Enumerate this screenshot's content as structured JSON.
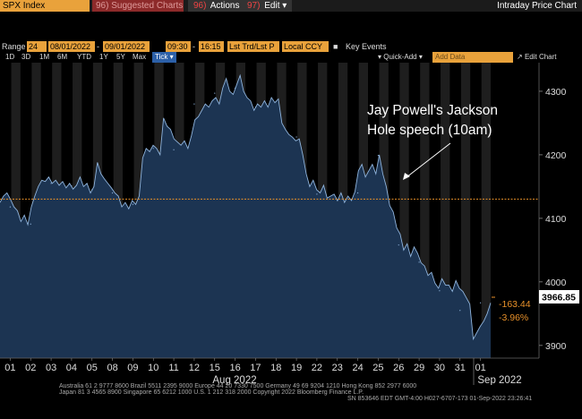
{
  "toolbar": {
    "ticker": "SPX Index",
    "suggested": "96) Suggested Charts",
    "actions_num": "96)",
    "actions": "Actions",
    "edit_num": "97)",
    "edit": "Edit",
    "title": "Intraday Price Chart"
  },
  "controls": {
    "range_label": "Range",
    "range_num": "24",
    "start_date": "08/01/2022",
    "end_date": "09/01/2022",
    "start_time": "09:30",
    "end_time": "16:15",
    "price_mode": "Lst Trd/Lst P",
    "currency": "Local CCY",
    "key_events": "Key Events"
  },
  "timeframes": [
    "1D",
    "3D",
    "1M",
    "6M",
    "YTD",
    "1Y",
    "5Y",
    "Max"
  ],
  "tick_label": "Tick",
  "quick_add": "Quick-Add",
  "add_data_placeholder": "Add Data",
  "edit_chart": "Edit Chart",
  "annotation": {
    "line1": "Jay Powell's Jackson",
    "line2": "Hole speech (10am)"
  },
  "last_price": "3966.85",
  "change_abs": "-163.44",
  "change_pct": "-3.96%",
  "colors": {
    "area_fill": "#1c3452",
    "area_line": "#8fb4dd",
    "reference_line": "#e7902a",
    "last_price_box": "#ffffff",
    "night_band": "#1e1e1e",
    "orange_ui": "#e9a23b"
  },
  "footer": {
    "line1": "Australia 61 2 9777 8600  Brazil 5511 2395 9000  Europe 44 20 7330 7500  Germany 49 69 9204 1210  Hong Kong 852 2977 6000",
    "line2": "Japan 81 3 4565 8900        Singapore 65 6212 1000        U.S. 1 212 318 2000          Copyright 2022 Bloomberg Finance L.P.",
    "line3": "SN 853646 EDT  GMT-4:00 H027-6707-173 01-Sep-2022 23:26:41"
  },
  "chart_data": {
    "type": "area",
    "title": "",
    "xlabel": "",
    "ylabel": "",
    "ylim": [
      3880,
      4345
    ],
    "yticks": [
      3900,
      4000,
      4100,
      4200,
      4300
    ],
    "reference_value": 4130.29,
    "x_tick_labels": [
      "01",
      "02",
      "03",
      "04",
      "05",
      "08",
      "09",
      "10",
      "11",
      "12",
      "15",
      "16",
      "17",
      "18",
      "19",
      "22",
      "23",
      "24",
      "25",
      "26",
      "29",
      "30",
      "31",
      "01"
    ],
    "x_group_labels": [
      "Aug 2022",
      "Sep 2022"
    ],
    "session_close": [
      4118,
      4091,
      4155,
      4151,
      4145,
      4140,
      4122,
      4210,
      4208,
      4280,
      4297,
      4305,
      4275,
      4284,
      4228,
      4138,
      4128,
      4140,
      4199,
      4058,
      4031,
      3986,
      3955,
      3967
    ],
    "series": [
      {
        "values": [
          4125,
          4135,
          4140,
          4130,
          4118,
          4112,
          4095,
          4105,
          4090,
          4118,
          4135,
          4150,
          4160,
          4158,
          4165,
          4155,
          4160,
          4152,
          4158,
          4148,
          4155,
          4146,
          4152,
          4165,
          4150,
          4155,
          4140,
          4150,
          4188,
          4170,
          4162,
          4155,
          4148,
          4140,
          4135,
          4118,
          4125,
          4115,
          4128,
          4122,
          4135,
          4195,
          4210,
          4205,
          4215,
          4210,
          4200,
          4258,
          4245,
          4240,
          4225,
          4220,
          4215,
          4222,
          4210,
          4230,
          4255,
          4260,
          4270,
          4280,
          4275,
          4285,
          4290,
          4280,
          4305,
          4320,
          4300,
          4295,
          4310,
          4325,
          4300,
          4290,
          4285,
          4270,
          4280,
          4275,
          4285,
          4275,
          4290,
          4282,
          4288,
          4250,
          4240,
          4232,
          4228,
          4222,
          4225,
          4200,
          4170,
          4150,
          4160,
          4145,
          4140,
          4152,
          4132,
          4135,
          4138,
          4128,
          4140,
          4125,
          4135,
          4128,
          4142,
          4175,
          4185,
          4165,
          4175,
          4185,
          4170,
          4200,
          4170,
          4150,
          4120,
          4110,
          4085,
          4075,
          4050,
          4060,
          4040,
          4055,
          4045,
          4030,
          4025,
          4010,
          4015,
          3998,
          3990,
          4005,
          3995,
          3995,
          3985,
          4002,
          3990,
          3985,
          3975,
          3965,
          3910,
          3920,
          3930,
          3938,
          3950,
          3967
        ]
      }
    ],
    "annotation": "Jay Powell's Jackson Hole speech (10am)"
  }
}
